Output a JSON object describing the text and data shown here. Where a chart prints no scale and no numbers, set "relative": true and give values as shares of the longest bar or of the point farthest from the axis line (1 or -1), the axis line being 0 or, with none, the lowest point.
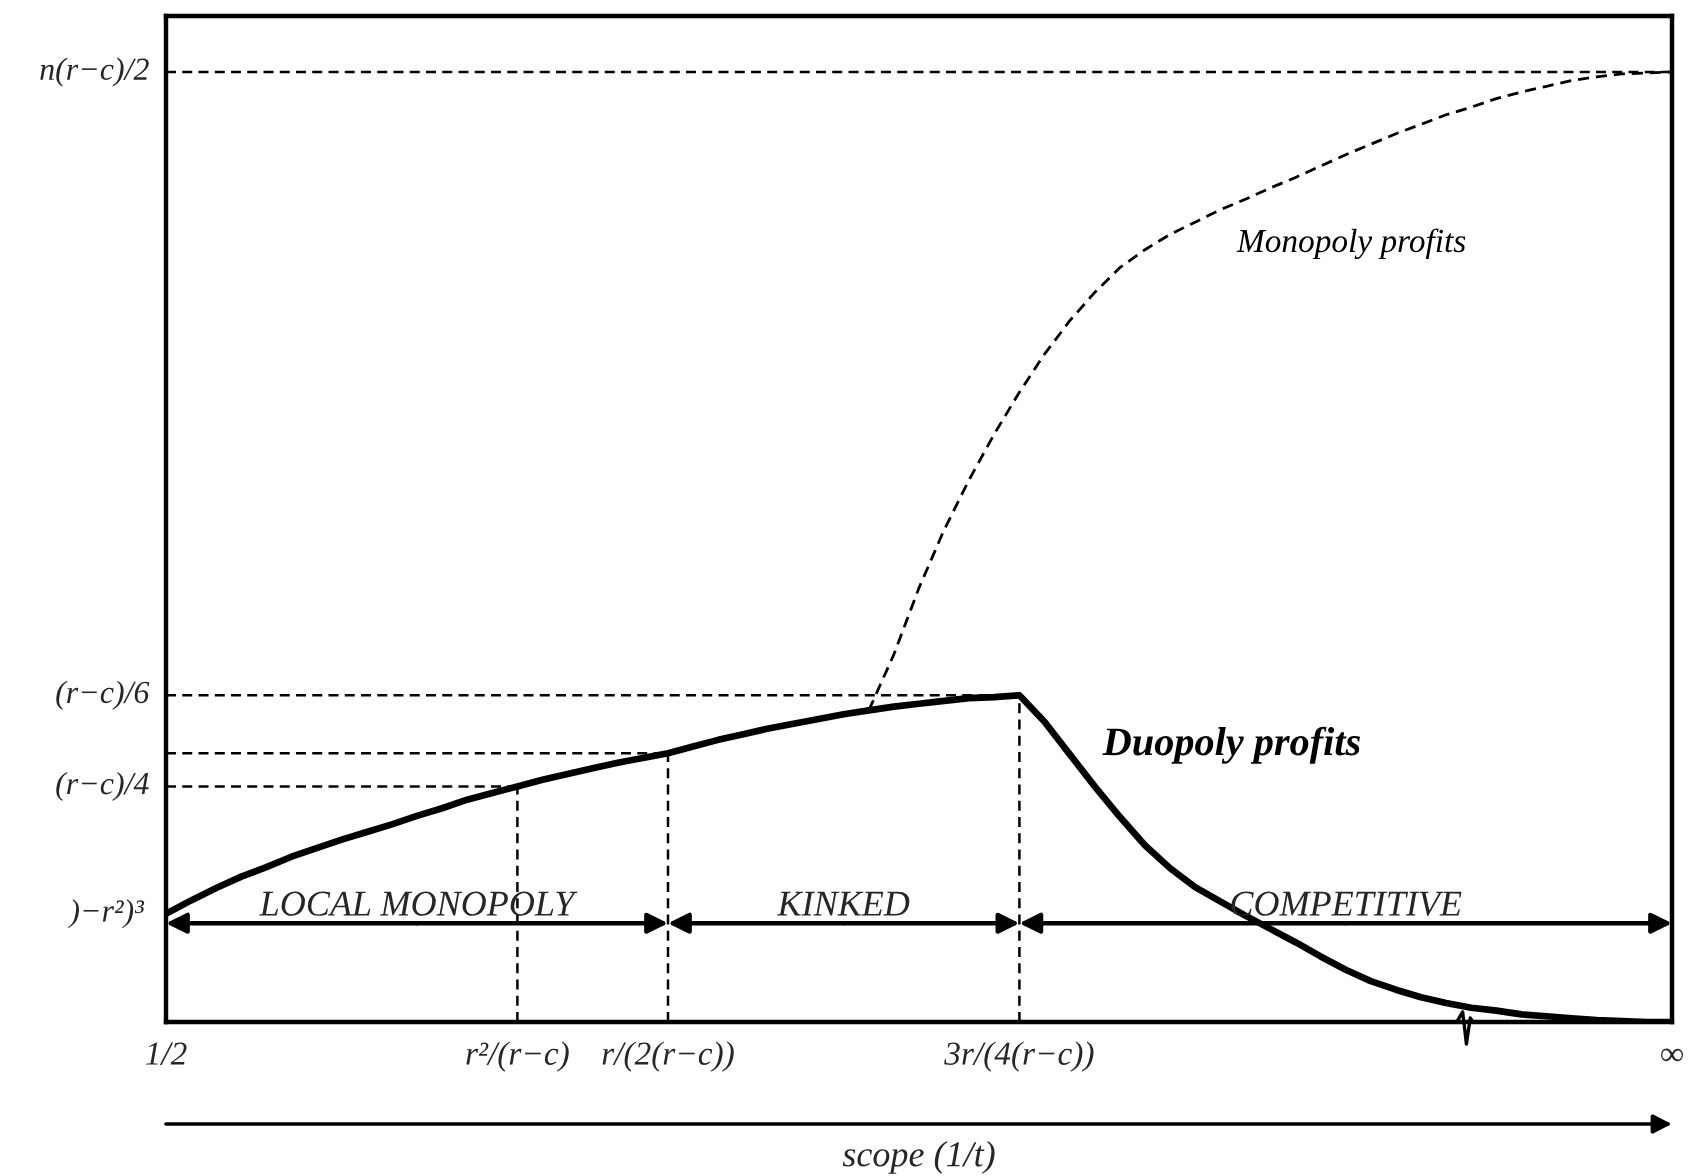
{
  "chart_data": {
    "type": "line",
    "relative": true,
    "xlabel": "scope (1/t)",
    "categories": [
      "1/2",
      null,
      null,
      null,
      null,
      null,
      null,
      null,
      null,
      null,
      null,
      null,
      null,
      null,
      "r²/(r−c)",
      null,
      null,
      null,
      null,
      null,
      "r/(2(r−c))",
      null,
      null,
      null,
      null,
      null,
      null,
      null,
      null,
      null,
      null,
      null,
      null,
      null,
      "3r/(4(r−c))",
      null,
      null,
      null,
      null,
      null,
      null,
      null,
      null,
      null,
      null,
      null,
      null,
      null,
      null,
      null,
      null,
      null,
      null,
      null,
      null,
      null,
      null,
      null,
      null,
      null,
      "∞"
    ],
    "series": [
      {
        "name": "Duopoly profits",
        "color": "#000000",
        "line_style": "solid",
        "values": [
          0.114,
          0.128,
          0.141,
          0.153,
          0.163,
          0.174,
          0.183,
          0.192,
          0.2,
          0.208,
          0.217,
          0.225,
          0.234,
          0.241,
          0.248,
          0.255,
          0.261,
          0.267,
          0.273,
          0.278,
          0.283,
          0.29,
          0.297,
          0.303,
          0.309,
          0.314,
          0.319,
          0.324,
          0.328,
          0.332,
          0.335,
          0.338,
          0.341,
          0.342,
          0.344,
          0.316,
          0.282,
          0.248,
          0.216,
          0.186,
          0.162,
          0.142,
          0.127,
          0.112,
          0.098,
          0.084,
          0.069,
          0.055,
          0.043,
          0.034,
          0.026,
          0.02,
          0.015,
          0.012,
          0.008,
          0.006,
          0.004,
          0.002,
          0.001,
          0,
          0
        ]
      },
      {
        "name": "Monopoly profits",
        "color": "#000000",
        "line_style": "dashed",
        "values": [
          null,
          null,
          null,
          null,
          null,
          null,
          null,
          null,
          null,
          null,
          null,
          null,
          null,
          null,
          null,
          null,
          null,
          null,
          null,
          null,
          null,
          null,
          null,
          null,
          null,
          null,
          null,
          null,
          0.328,
          0.387,
          0.457,
          0.518,
          0.571,
          0.619,
          0.663,
          0.703,
          0.738,
          0.768,
          0.794,
          0.813,
          0.829,
          0.842,
          0.855,
          0.866,
          0.878,
          0.889,
          0.901,
          0.913,
          0.924,
          0.935,
          0.945,
          0.955,
          0.963,
          0.972,
          0.979,
          0.985,
          0.991,
          0.995,
          0.998,
          0.999,
          1.0
        ]
      }
    ],
    "ref_lines": [
      {
        "axis": "y",
        "value": 1.0,
        "label": "n(r−c)/2",
        "line_style": "dashed",
        "color": "#000000"
      },
      {
        "axis": "y",
        "value": 0.344,
        "label": "(r−c)/6",
        "line_style": "dashed",
        "color": "#000000"
      },
      {
        "axis": "y",
        "value": 0.283,
        "line_style": "dashed",
        "color": "#000000"
      },
      {
        "axis": "y",
        "value": 0.248,
        "label": "(r−c)/4",
        "line_style": "dashed",
        "color": "#000000"
      },
      {
        "axis": "x",
        "value": "r²/(r−c)",
        "line_style": "dashed",
        "color": "#000000"
      },
      {
        "axis": "x",
        "value": "r/(2(r−c))",
        "line_style": "dashed",
        "color": "#000000"
      },
      {
        "axis": "x",
        "value": "3r/(4(r−c))",
        "line_style": "dashed",
        "color": "#000000"
      }
    ],
    "annotations": [
      {
        "text": ")−r²)³",
        "x": "1/2",
        "y": 0.114
      },
      {
        "text": "LOCAL MONOPOLY",
        "x": "1/2",
        "y": 0.104
      },
      {
        "text": "KINKED",
        "x": "r/(2(r−c))",
        "y": 0.104
      },
      {
        "text": "COMPETITIVE",
        "x": "3r/(4(r−c))",
        "y": 0.104
      }
    ]
  }
}
